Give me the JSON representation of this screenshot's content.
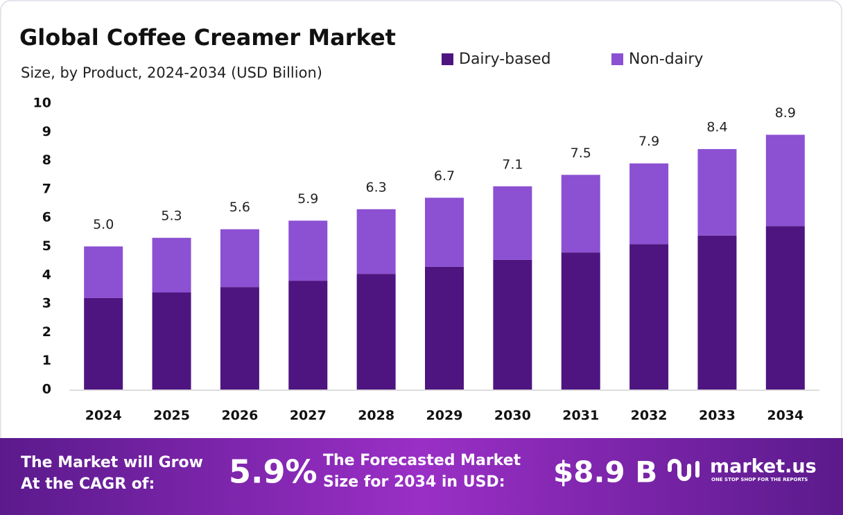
{
  "chart_data": {
    "type": "stacked_bar",
    "title": "Global Coffee Creamer Market",
    "subtitle": "Size, by Product, 2024-2034 (USD Billion)",
    "categories": [
      "2024",
      "2025",
      "2026",
      "2027",
      "2028",
      "2029",
      "2030",
      "2031",
      "2032",
      "2033",
      "2034"
    ],
    "series": [
      {
        "name": "Dairy-based",
        "color": "#4e1580",
        "values": [
          3.2,
          3.39,
          3.58,
          3.8,
          4.04,
          4.29,
          4.53,
          4.79,
          5.08,
          5.38,
          5.71
        ]
      },
      {
        "name": "Non-dairy",
        "color": "#8c50d2",
        "values": [
          1.8,
          1.91,
          2.02,
          2.1,
          2.26,
          2.41,
          2.57,
          2.71,
          2.82,
          3.02,
          3.19
        ]
      }
    ],
    "totals": [
      5.0,
      5.3,
      5.6,
      5.9,
      6.3,
      6.7,
      7.1,
      7.5,
      7.9,
      8.4,
      8.9
    ],
    "value_labels": [
      "5.0",
      "5.3",
      "5.6",
      "5.9",
      "6.3",
      "6.7",
      "7.1",
      "7.5",
      "7.9",
      "8.4",
      "8.9"
    ],
    "ylim": [
      0,
      10
    ],
    "yticks": [
      0,
      1,
      2,
      3,
      4,
      5,
      6,
      7,
      8,
      9,
      10
    ],
    "grid": false
  },
  "footer": {
    "cagr_text_1": "The Market will Grow",
    "cagr_text_2": "At the CAGR of:",
    "cagr": "5.9%",
    "forecast_text_1": "The Forecasted Market",
    "forecast_text_2": "Size for 2034 in USD:",
    "forecast": "$8.9 B",
    "brand": "market.us",
    "tagline": "ONE STOP SHOP FOR THE REPORTS"
  }
}
